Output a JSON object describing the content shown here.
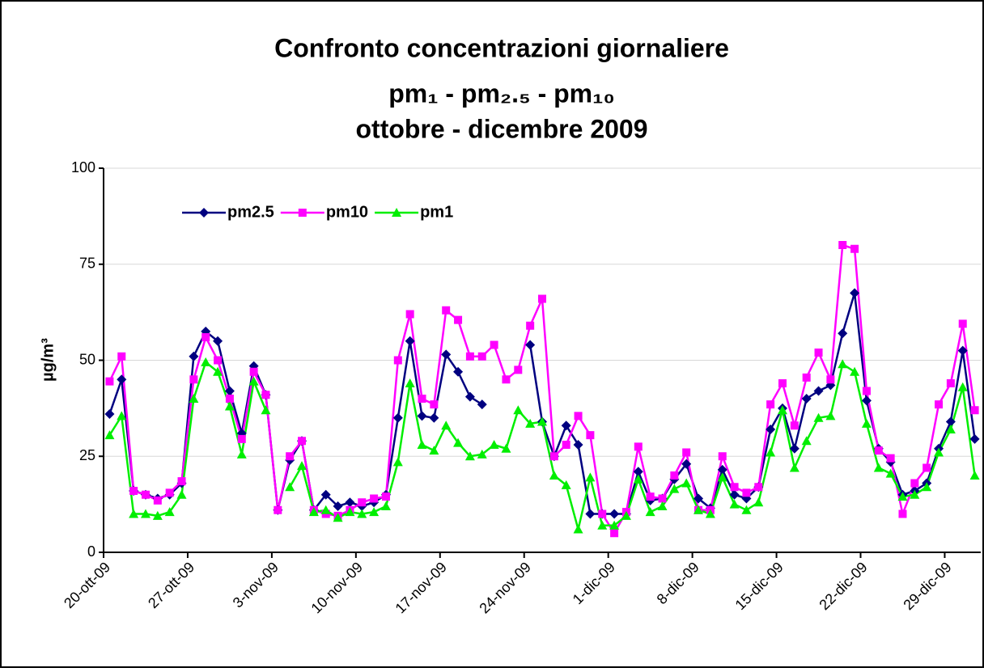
{
  "chart_data": {
    "type": "line",
    "title": "Confronto concentrazioni giornaliere",
    "subtitle": "pm₁ - pm₂.₅ - pm₁₀",
    "subtitle2": "ottobre - dicembre 2009",
    "y_label": "µg/m³",
    "categories": [
      "20-ott-09",
      null,
      null,
      null,
      null,
      null,
      null,
      "27-ott-09",
      null,
      null,
      null,
      null,
      null,
      null,
      "3-nov-09",
      null,
      null,
      null,
      null,
      null,
      null,
      "10-nov-09",
      null,
      null,
      null,
      null,
      null,
      null,
      "17-nov-09",
      null,
      null,
      null,
      null,
      null,
      null,
      "24-nov-09",
      null,
      null,
      null,
      null,
      null,
      null,
      "1-dic-09",
      null,
      null,
      null,
      null,
      null,
      null,
      "8-dic-09",
      null,
      null,
      null,
      null,
      null,
      null,
      "15-dic-09",
      null,
      null,
      null,
      null,
      null,
      null,
      "22-dic-09",
      null,
      null,
      null,
      null,
      null,
      null,
      "29-dic-09",
      null,
      null
    ],
    "series": [
      {
        "name": "pm2.5",
        "color": "#000080",
        "marker": "diamond",
        "values": [
          36,
          45,
          16,
          15,
          14,
          15,
          18,
          51,
          57.5,
          55,
          42,
          31,
          48.5,
          41,
          11,
          24,
          29,
          11,
          15,
          12,
          13,
          12,
          13,
          15,
          35,
          55,
          35.5,
          35,
          51.5,
          47,
          40.5,
          38.5,
          null,
          null,
          null,
          54,
          34,
          25,
          33,
          28,
          10,
          10,
          10,
          10,
          21,
          13.5,
          14,
          19,
          23,
          14,
          11.5,
          21.5,
          15,
          14,
          17,
          32,
          37.5,
          27,
          40,
          42,
          43.5,
          57,
          67.5,
          39.5,
          27,
          23.5,
          15,
          16,
          18,
          27,
          34,
          52.5,
          29.5
        ]
      },
      {
        "name": "pm10",
        "color": "#ff00ff",
        "marker": "square",
        "values": [
          44.5,
          51,
          16,
          15,
          13.5,
          15.5,
          18.5,
          45,
          56,
          50,
          40,
          29.5,
          47,
          41,
          11,
          25,
          29,
          11,
          10,
          9.5,
          11,
          13,
          14,
          14.5,
          50,
          62,
          40,
          38.5,
          63,
          60.5,
          51,
          51,
          54,
          45,
          47.5,
          59,
          66,
          25,
          28,
          35.5,
          30.5,
          10,
          5,
          10.5,
          27.5,
          14.5,
          14,
          20,
          26,
          11,
          11,
          25,
          17,
          15.5,
          17,
          38.5,
          44,
          33,
          45.5,
          52,
          45,
          80,
          79,
          42,
          26.5,
          24.5,
          10,
          18,
          22,
          38.5,
          44,
          59.5,
          37
        ]
      },
      {
        "name": "pm1",
        "color": "#00ee00",
        "marker": "triangle",
        "values": [
          30.5,
          35.5,
          10,
          10,
          9.5,
          10.5,
          15,
          40,
          49.5,
          47,
          38,
          25.5,
          44.5,
          37,
          null,
          17,
          22.5,
          10.5,
          11,
          9,
          10.5,
          10,
          10.5,
          12,
          23.5,
          44,
          28,
          26.5,
          33,
          28.5,
          25,
          25.5,
          28,
          27,
          37,
          33.5,
          34,
          20,
          17.5,
          6,
          19.5,
          7,
          7,
          9.5,
          19,
          10.5,
          12,
          16.5,
          18,
          11,
          10,
          19.5,
          12.5,
          11,
          13,
          26,
          37,
          22,
          29,
          35,
          35.5,
          49,
          47,
          33.5,
          22,
          20.5,
          14.5,
          15,
          17,
          26,
          32,
          43,
          20
        ]
      }
    ],
    "ylim": [
      0,
      100
    ],
    "yticks": [
      0,
      25,
      50,
      75,
      100
    ],
    "grid": true,
    "legend": "upper left"
  }
}
